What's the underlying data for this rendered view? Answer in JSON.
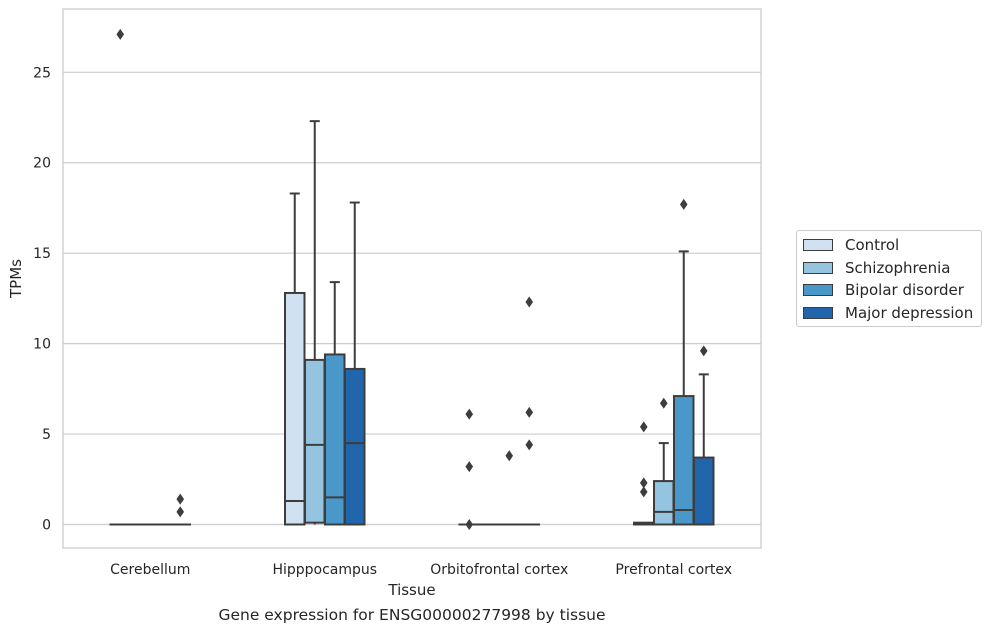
{
  "caption": "Gene expression for ENSG00000277998 by tissue",
  "chart_data": {
    "type": "box",
    "title": "",
    "xlabel": "Tissue",
    "ylabel": "TPMs",
    "ylim": [
      -1.3,
      28.5
    ],
    "yticks": [
      0,
      5,
      10,
      15,
      20,
      25
    ],
    "grid": "horizontal",
    "legend_position": "right",
    "categories": [
      "Cerebellum",
      "Hipppocampus",
      "Orbitofrontal cortex",
      "Prefrontal cortex"
    ],
    "series": [
      {
        "name": "Control",
        "color": "#d0e1f2",
        "boxes": [
          {
            "q1": 0,
            "median": 0,
            "q3": 0,
            "whisker_low": 0,
            "whisker_high": 0,
            "outliers": [
              27.1
            ]
          },
          {
            "q1": 0,
            "median": 1.3,
            "q3": 12.8,
            "whisker_low": 0,
            "whisker_high": 18.3,
            "outliers": []
          },
          {
            "q1": 0,
            "median": 0,
            "q3": 0,
            "whisker_low": 0,
            "whisker_high": 0,
            "outliers": [
              0,
              3.2,
              6.1
            ]
          },
          {
            "q1": 0,
            "median": 0.05,
            "q3": 0.1,
            "whisker_low": 0,
            "whisker_high": 0.1,
            "outliers": [
              1.8,
              2.3,
              5.4
            ]
          }
        ]
      },
      {
        "name": "Schizophrenia",
        "color": "#94c4df",
        "boxes": [
          {
            "q1": 0,
            "median": 0,
            "q3": 0,
            "whisker_low": 0,
            "whisker_high": 0,
            "outliers": []
          },
          {
            "q1": 0.1,
            "median": 4.4,
            "q3": 9.1,
            "whisker_low": 0,
            "whisker_high": 22.3,
            "outliers": []
          },
          {
            "q1": 0,
            "median": 0,
            "q3": 0,
            "whisker_low": 0,
            "whisker_high": 0,
            "outliers": []
          },
          {
            "q1": 0,
            "median": 0.7,
            "q3": 2.4,
            "whisker_low": 0,
            "whisker_high": 4.5,
            "outliers": [
              6.7
            ]
          }
        ]
      },
      {
        "name": "Bipolar disorder",
        "color": "#4a98c9",
        "boxes": [
          {
            "q1": 0,
            "median": 0,
            "q3": 0,
            "whisker_low": 0,
            "whisker_high": 0,
            "outliers": []
          },
          {
            "q1": 0,
            "median": 1.5,
            "q3": 9.4,
            "whisker_low": 0,
            "whisker_high": 13.4,
            "outliers": []
          },
          {
            "q1": 0,
            "median": 0,
            "q3": 0,
            "whisker_low": 0,
            "whisker_high": 0,
            "outliers": [
              3.8
            ]
          },
          {
            "q1": 0,
            "median": 0.8,
            "q3": 7.1,
            "whisker_low": 0,
            "whisker_high": 15.1,
            "outliers": [
              17.7
            ]
          }
        ]
      },
      {
        "name": "Major depression",
        "color": "#2166ac",
        "boxes": [
          {
            "q1": 0,
            "median": 0,
            "q3": 0,
            "whisker_low": 0,
            "whisker_high": 0,
            "outliers": [
              0.7,
              1.4
            ]
          },
          {
            "q1": 0,
            "median": 4.5,
            "q3": 8.6,
            "whisker_low": 0,
            "whisker_high": 17.8,
            "outliers": []
          },
          {
            "q1": 0,
            "median": 0,
            "q3": 0,
            "whisker_low": 0,
            "whisker_high": 0,
            "outliers": [
              4.4,
              6.2,
              12.3
            ]
          },
          {
            "q1": 0,
            "median": 0,
            "q3": 3.7,
            "whisker_low": 0,
            "whisker_high": 8.3,
            "outliers": [
              9.6
            ]
          }
        ]
      }
    ]
  }
}
